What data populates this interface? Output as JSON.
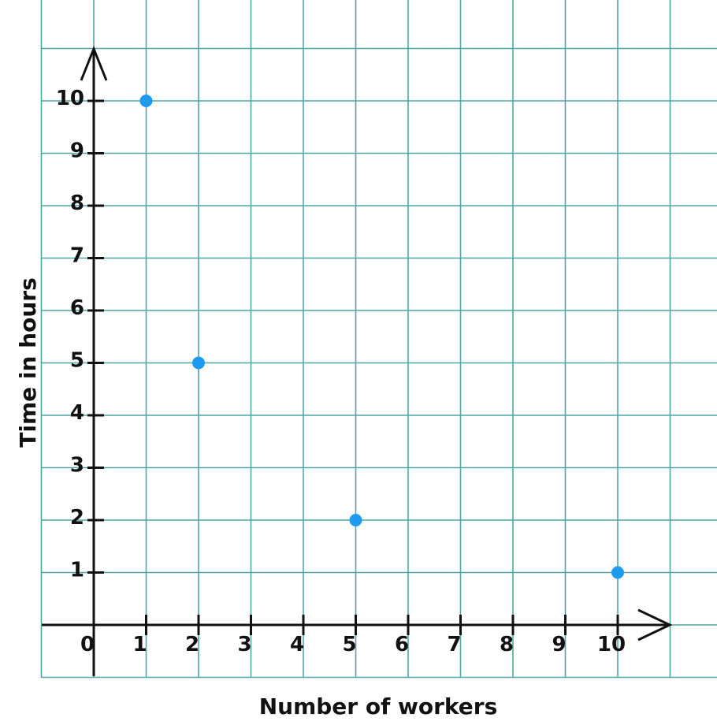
{
  "chart_data": {
    "type": "scatter",
    "title": "",
    "xlabel": "Number of workers",
    "ylabel": "Time in hours",
    "xlim": [
      0,
      10
    ],
    "ylim": [
      0,
      10
    ],
    "x_ticks": [
      "0",
      "1",
      "2",
      "3",
      "4",
      "5",
      "6",
      "7",
      "8",
      "9",
      "10"
    ],
    "y_ticks": [
      "1",
      "2",
      "3",
      "4",
      "5",
      "6",
      "7",
      "8",
      "9",
      "10"
    ],
    "grid": true,
    "points": [
      {
        "x": 1,
        "y": 10
      },
      {
        "x": 2,
        "y": 5
      },
      {
        "x": 5,
        "y": 2
      },
      {
        "x": 10,
        "y": 1
      }
    ],
    "colors": {
      "grid": "#4fa6a6",
      "axis": "#111111",
      "point": "#1e9bf0"
    }
  }
}
